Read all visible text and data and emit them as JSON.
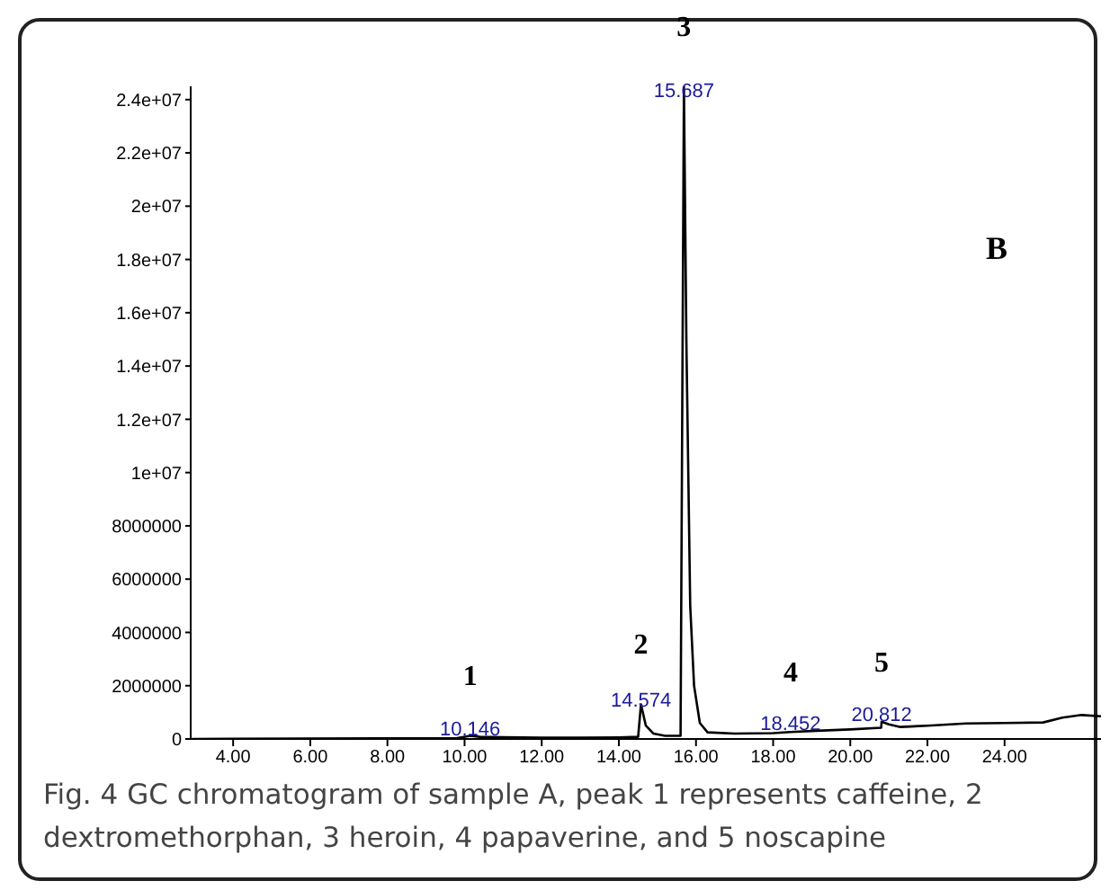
{
  "chart_data": {
    "type": "line",
    "title": "B",
    "x": [
      2.93,
      9.8,
      10.146,
      10.4,
      11,
      12,
      13,
      14,
      14.5,
      14.574,
      14.7,
      14.9,
      15.2,
      15.6,
      15.687,
      15.75,
      15.85,
      15.95,
      16.1,
      16.3,
      17,
      18,
      18.452,
      19,
      20,
      20.8,
      20.812,
      21,
      21.3,
      22,
      23,
      24,
      25,
      25.5,
      26,
      26.5
    ],
    "series": [
      {
        "color": "#000000",
        "values": [
          0,
          30000,
          120000,
          80000,
          70000,
          50000,
          50000,
          60000,
          80000,
          1300000,
          500000,
          200000,
          120000,
          120000,
          24500000,
          15000000,
          5000000,
          2000000,
          600000,
          250000,
          200000,
          220000,
          260000,
          300000,
          360000,
          420000,
          650000,
          550000,
          450000,
          500000,
          580000,
          600000,
          620000,
          800000,
          900000,
          850000
        ]
      }
    ],
    "xlim": [
      2.9,
      26.5
    ],
    "xticks": [
      {
        "value": 4,
        "label": "4.00"
      },
      {
        "value": 6,
        "label": "6.00"
      },
      {
        "value": 8,
        "label": "8.00"
      },
      {
        "value": 10,
        "label": "10.00"
      },
      {
        "value": 12,
        "label": "12.00"
      },
      {
        "value": 14,
        "label": "14.00"
      },
      {
        "value": 16,
        "label": "16.00"
      },
      {
        "value": 18,
        "label": "18.00"
      },
      {
        "value": 20,
        "label": "20.00"
      },
      {
        "value": 22,
        "label": "22.00"
      },
      {
        "value": 24,
        "label": "24.00"
      }
    ],
    "ylim": [
      0,
      24500000
    ],
    "yticks": [
      0,
      2000000,
      4000000,
      6000000,
      8000000,
      {
        "value": 10000000,
        "label": "1e+07"
      },
      {
        "value": 12000000,
        "label": "1.2e+07"
      },
      {
        "value": 14000000,
        "label": "1.4e+07"
      },
      {
        "value": 16000000,
        "label": "1.6e+07"
      },
      {
        "value": 18000000,
        "label": "1.8e+07"
      },
      {
        "value": 20000000,
        "label": "2e+07"
      },
      {
        "value": 22000000,
        "label": "2.2e+07"
      },
      {
        "value": 24000000,
        "label": "2.4e+07"
      }
    ],
    "annotations": [
      {
        "text": "10.146",
        "x": 10.146,
        "y": 140000
      },
      {
        "text": "14.574",
        "x": 14.574,
        "y": 1200000
      },
      {
        "text": "15.687",
        "x": 15.687,
        "y": 24100000
      },
      {
        "text": "18.452",
        "x": 18.452,
        "y": 340000
      },
      {
        "text": "20.812",
        "x": 20.812,
        "y": 680000
      },
      {
        "text": "1",
        "x": 10.146,
        "y": 120000
      },
      {
        "text": "2",
        "x": 14.574,
        "y": 1300000
      },
      {
        "text": "3",
        "x": 15.687,
        "y": 24500000
      },
      {
        "text": "4",
        "x": 18.452,
        "y": 260000
      },
      {
        "text": "5",
        "x": 20.812,
        "y": 650000
      },
      "Fig. 4 GC chromatogram of sample A, peak 1 represents caffeine, 2 dextromethorphan, 3 heroin, 4 papaverine, and 5 noscapine"
    ],
    "grid": false,
    "legend": false,
    "marker": "none",
    "line_style": "solid"
  }
}
